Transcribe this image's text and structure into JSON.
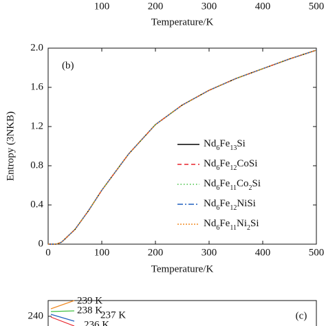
{
  "chart_data": [
    {
      "type": "line",
      "xlabel": "Temperature/K",
      "xlim": [
        0,
        500
      ],
      "xticks": [
        100,
        200,
        300,
        400,
        500
      ]
    },
    {
      "type": "line",
      "annotation": "(b)",
      "xlabel": "Temperature/K",
      "ylabel": "Entropy (3NKB)",
      "xlim": [
        0,
        500
      ],
      "ylim": [
        0,
        2.0
      ],
      "xticks": [
        0,
        100,
        200,
        300,
        400,
        500
      ],
      "yticks": [
        0,
        0.4,
        0.8,
        1.2,
        1.6,
        {
          "value": 2,
          "label": "2.0"
        }
      ],
      "x": [
        0,
        15,
        25,
        50,
        75,
        100,
        150,
        200,
        250,
        300,
        350,
        400,
        450,
        500
      ],
      "series": [
        {
          "name": "Nd6Fe13Si",
          "color": "#000000",
          "dash": "none",
          "values": [
            0,
            0,
            0.02,
            0.15,
            0.34,
            0.55,
            0.92,
            1.22,
            1.42,
            1.57,
            1.69,
            1.79,
            1.89,
            1.98
          ]
        },
        {
          "name": "Nd6Fe12CoSi",
          "color": "#e8222a",
          "dash": "6 4",
          "values": [
            0,
            0,
            0.02,
            0.15,
            0.34,
            0.55,
            0.92,
            1.22,
            1.42,
            1.57,
            1.69,
            1.79,
            1.89,
            1.98
          ]
        },
        {
          "name": "Nd6Fe11Co2Si",
          "color": "#3fbf3f",
          "dash": "1.5 3",
          "values": [
            0,
            0,
            0.02,
            0.15,
            0.34,
            0.55,
            0.92,
            1.22,
            1.42,
            1.57,
            1.69,
            1.79,
            1.89,
            1.98
          ]
        },
        {
          "name": "Nd6Fe12NiSi",
          "color": "#1f5fbf",
          "dash": "8 3 2 3",
          "values": [
            0,
            0,
            0.02,
            0.15,
            0.34,
            0.55,
            0.92,
            1.22,
            1.42,
            1.57,
            1.69,
            1.79,
            1.89,
            1.98
          ]
        },
        {
          "name": "Nd6Fe11Ni2Si",
          "color": "#f08a24",
          "dash": "2 2",
          "values": [
            0,
            0,
            0.02,
            0.15,
            0.34,
            0.55,
            0.92,
            1.22,
            1.42,
            1.57,
            1.69,
            1.79,
            1.89,
            1.98
          ]
        }
      ]
    },
    {
      "type": "scatter",
      "annotation": "(c)",
      "ylim": [
        230,
        244
      ],
      "yticks": [
        240
      ],
      "annotations": [
        "239 K",
        "238 K",
        "237 K",
        "236 K"
      ]
    }
  ]
}
